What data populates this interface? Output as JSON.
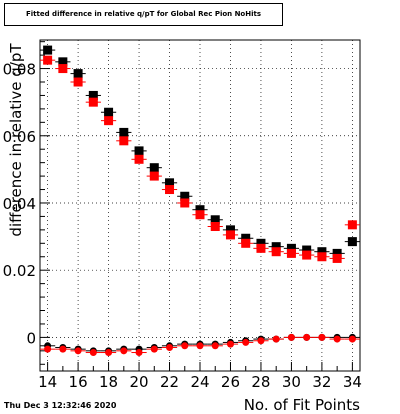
{
  "chart_data": {
    "type": "scatter",
    "title": "Fitted difference in relative q/pT for Global Rec Pion NoHits",
    "xlabel": "No. of Fit Points",
    "ylabel": "difference in relative q/pT",
    "xlim": [
      13.5,
      34.5
    ],
    "ylim": [
      -0.01,
      0.0885
    ],
    "x_ticks": [
      14,
      16,
      18,
      20,
      22,
      24,
      26,
      28,
      30,
      32,
      34
    ],
    "y_ticks": [
      0,
      0.02,
      0.04,
      0.06,
      0.08
    ],
    "y_tick_labels": [
      "0",
      "0.02",
      "0.04",
      "0.06",
      "0.08"
    ],
    "grid": true,
    "series": [
      {
        "color": "#000000",
        "marker": "square",
        "x": [
          14,
          15,
          16,
          17,
          18,
          19,
          20,
          21,
          22,
          23,
          24,
          25,
          26,
          27,
          28,
          29,
          30,
          31,
          32,
          33,
          34
        ],
        "y": [
          0.0855,
          0.082,
          0.0785,
          0.072,
          0.067,
          0.061,
          0.0555,
          0.0505,
          0.046,
          0.042,
          0.038,
          0.035,
          0.032,
          0.0295,
          0.028,
          0.027,
          0.0265,
          0.026,
          0.0255,
          0.025,
          0.0285
        ]
      },
      {
        "color": "#ff0000",
        "marker": "square",
        "x": [
          14,
          15,
          16,
          17,
          18,
          19,
          20,
          21,
          22,
          23,
          24,
          25,
          26,
          27,
          28,
          29,
          30,
          31,
          32,
          33,
          34
        ],
        "y": [
          0.0825,
          0.08,
          0.076,
          0.07,
          0.0645,
          0.0585,
          0.053,
          0.048,
          0.044,
          0.04,
          0.0365,
          0.033,
          0.0305,
          0.028,
          0.0265,
          0.0255,
          0.025,
          0.0245,
          0.024,
          0.0235,
          0.0335
        ]
      },
      {
        "color": "#000000",
        "marker": "circle",
        "x": [
          14,
          15,
          16,
          17,
          18,
          19,
          20,
          21,
          22,
          23,
          24,
          25,
          26,
          27,
          28,
          29,
          30,
          31,
          32,
          33,
          34
        ],
        "y": [
          -0.0025,
          -0.003,
          -0.0035,
          -0.004,
          -0.004,
          -0.0035,
          -0.0035,
          -0.003,
          -0.0025,
          -0.002,
          -0.002,
          -0.002,
          -0.0015,
          -0.001,
          -0.0005,
          -0.0005,
          0.0,
          0.0,
          0.0,
          0.0,
          0.0
        ]
      },
      {
        "color": "#ff0000",
        "marker": "circle",
        "x": [
          14,
          15,
          16,
          17,
          18,
          19,
          20,
          21,
          22,
          23,
          24,
          25,
          26,
          27,
          28,
          29,
          30,
          31,
          32,
          33,
          34
        ],
        "y": [
          -0.0035,
          -0.0035,
          -0.004,
          -0.0045,
          -0.0045,
          -0.004,
          -0.0045,
          -0.0035,
          -0.003,
          -0.0025,
          -0.0025,
          -0.0025,
          -0.002,
          -0.0015,
          -0.001,
          -0.0005,
          0.0,
          0.0,
          0.0,
          -0.0005,
          -0.0005
        ]
      }
    ]
  },
  "timestamp": "Thu Dec  3 12:32:46 2020"
}
